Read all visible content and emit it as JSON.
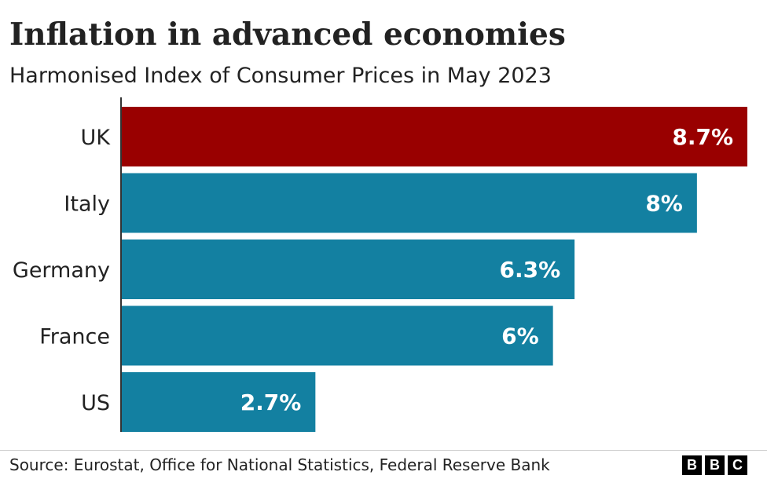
{
  "chart_data": {
    "type": "bar",
    "orientation": "horizontal",
    "title": "Inflation in advanced economies",
    "subtitle": "Harmonised Index of Consumer Prices in May 2023",
    "categories": [
      "UK",
      "Italy",
      "Germany",
      "France",
      "US"
    ],
    "values": [
      8.7,
      8.0,
      6.3,
      6.0,
      2.7
    ],
    "value_labels": [
      "8.7%",
      "8%",
      "6.3%",
      "6%",
      "2.7%"
    ],
    "xlim": [
      0,
      8.7
    ],
    "grid": false,
    "xlabel": "",
    "ylabel": "",
    "colors": {
      "highlight": "#990000",
      "default": "#1380A1",
      "label_text": "#ffffff",
      "axis": "#333333"
    },
    "highlight_index": 0
  },
  "footer": {
    "source": "Source: Eurostat, Office for National Statistics, Federal Reserve Bank",
    "logo_letters": [
      "B",
      "B",
      "C"
    ]
  }
}
